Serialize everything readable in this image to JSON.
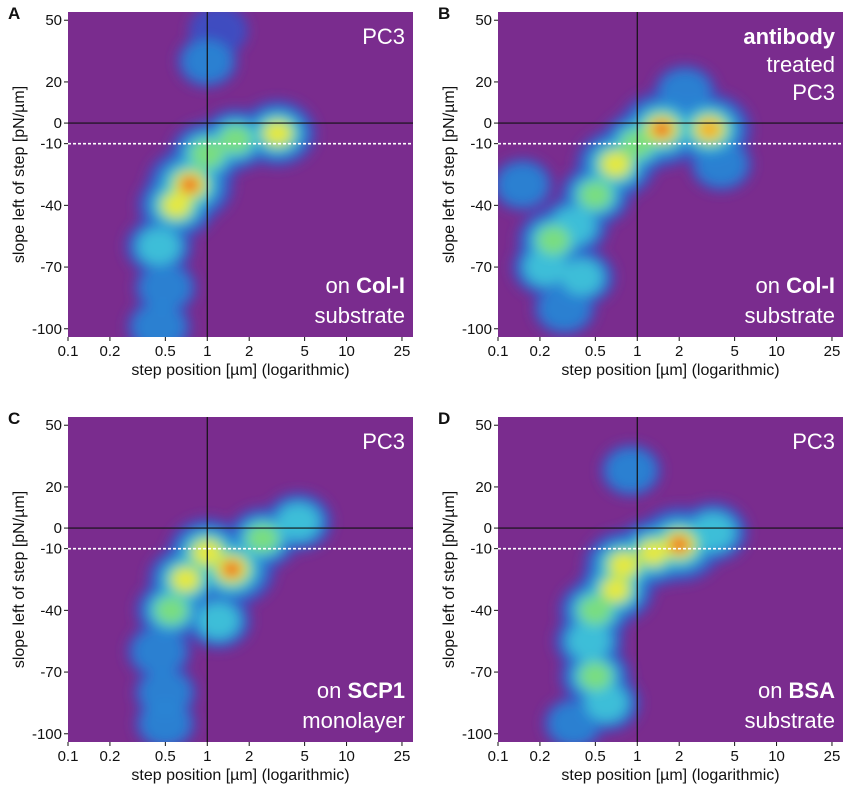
{
  "chart_data": [
    {
      "type": "heatmap",
      "panel_label": "A",
      "xlabel": "step position [µm] (logarithmic)",
      "ylabel": "slope left of step [pN/µm]",
      "x_scale": "log",
      "x_ticks": [
        0.1,
        0.2,
        0.5,
        1,
        2,
        5,
        10,
        25
      ],
      "x_tick_labels": [
        "0.1",
        "0.2",
        "0.5",
        "1",
        "2",
        "5",
        "10",
        "25"
      ],
      "y_ticks": [
        50,
        20,
        0,
        -10,
        -40,
        -70,
        -100
      ],
      "y_tick_labels": [
        "50",
        "20",
        "0",
        "-10",
        "-40",
        "-70",
        "-100"
      ],
      "xlim": [
        0.1,
        30
      ],
      "ylim": [
        -104,
        54
      ],
      "reference_lines": {
        "vertical_x": 1,
        "horizontal_y": 0,
        "dashed_y": -10
      },
      "annotations": [
        {
          "text": "PC3",
          "bold": false,
          "pos": "top-right"
        },
        {
          "prefix": "on ",
          "text": "Col-I",
          "bold": true,
          "pos": "bottom-right"
        },
        {
          "text": "substrate",
          "bold": false,
          "pos": "bottom-right"
        }
      ],
      "hotspots": [
        {
          "x": 0.75,
          "y": -30,
          "intensity": 1.0
        },
        {
          "x": 0.6,
          "y": -40,
          "intensity": 0.75
        },
        {
          "x": 1.0,
          "y": -15,
          "intensity": 0.65
        },
        {
          "x": 1.6,
          "y": -8,
          "intensity": 0.55
        },
        {
          "x": 3.2,
          "y": -5,
          "intensity": 0.7
        },
        {
          "x": 0.45,
          "y": -60,
          "intensity": 0.45
        },
        {
          "x": 0.5,
          "y": -80,
          "intensity": 0.3
        },
        {
          "x": 0.45,
          "y": -99,
          "intensity": 0.35
        },
        {
          "x": 1.0,
          "y": 30,
          "intensity": 0.25
        },
        {
          "x": 1.2,
          "y": 45,
          "intensity": 0.2
        }
      ]
    },
    {
      "type": "heatmap",
      "panel_label": "B",
      "xlabel": "step position [µm] (logarithmic)",
      "ylabel": "slope left of step [pN/µm]",
      "x_scale": "log",
      "x_ticks": [
        0.1,
        0.2,
        0.5,
        1,
        2,
        5,
        10,
        25
      ],
      "x_tick_labels": [
        "0.1",
        "0.2",
        "0.5",
        "1",
        "2",
        "5",
        "10",
        "25"
      ],
      "y_ticks": [
        50,
        20,
        0,
        -10,
        -40,
        -70,
        -100
      ],
      "y_tick_labels": [
        "50",
        "20",
        "0",
        "-10",
        "-40",
        "-70",
        "-100"
      ],
      "xlim": [
        0.1,
        30
      ],
      "ylim": [
        -104,
        54
      ],
      "reference_lines": {
        "vertical_x": 1,
        "horizontal_y": 0,
        "dashed_y": -10
      },
      "annotations": [
        {
          "text": "antibody",
          "bold": true,
          "pos": "top-right"
        },
        {
          "text": "treated",
          "bold": false,
          "pos": "top-right"
        },
        {
          "text": "PC3",
          "bold": false,
          "pos": "top-right"
        },
        {
          "prefix": "on ",
          "text": "Col-I",
          "bold": true,
          "pos": "bottom-right"
        },
        {
          "text": "substrate",
          "bold": false,
          "pos": "bottom-right"
        }
      ],
      "hotspots": [
        {
          "x": 1.5,
          "y": -3,
          "intensity": 1.0
        },
        {
          "x": 3.3,
          "y": -3,
          "intensity": 0.9
        },
        {
          "x": 0.7,
          "y": -20,
          "intensity": 0.8
        },
        {
          "x": 1.0,
          "y": -10,
          "intensity": 0.6
        },
        {
          "x": 0.5,
          "y": -35,
          "intensity": 0.55
        },
        {
          "x": 0.35,
          "y": -50,
          "intensity": 0.5
        },
        {
          "x": 0.25,
          "y": -57,
          "intensity": 0.6
        },
        {
          "x": 0.22,
          "y": -70,
          "intensity": 0.45
        },
        {
          "x": 0.4,
          "y": -75,
          "intensity": 0.4
        },
        {
          "x": 0.3,
          "y": -90,
          "intensity": 0.3
        },
        {
          "x": 2.2,
          "y": 15,
          "intensity": 0.3
        },
        {
          "x": 4.0,
          "y": -20,
          "intensity": 0.3
        },
        {
          "x": 0.15,
          "y": -30,
          "intensity": 0.25
        }
      ]
    },
    {
      "type": "heatmap",
      "panel_label": "C",
      "xlabel": "step position [µm] (logarithmic)",
      "ylabel": "slope left of step [pN/µm]",
      "x_scale": "log",
      "x_ticks": [
        0.1,
        0.2,
        0.5,
        1,
        2,
        5,
        10,
        25
      ],
      "x_tick_labels": [
        "0.1",
        "0.2",
        "0.5",
        "1",
        "2",
        "5",
        "10",
        "25"
      ],
      "y_ticks": [
        50,
        20,
        0,
        -10,
        -40,
        -70,
        -100
      ],
      "y_tick_labels": [
        "50",
        "20",
        "0",
        "-10",
        "-40",
        "-70",
        "-100"
      ],
      "xlim": [
        0.1,
        30
      ],
      "ylim": [
        -104,
        54
      ],
      "reference_lines": {
        "vertical_x": 1,
        "horizontal_y": 0,
        "dashed_y": -10
      },
      "annotations": [
        {
          "text": "PC3",
          "bold": false,
          "pos": "top-right"
        },
        {
          "prefix": "on ",
          "text": "SCP1",
          "bold": true,
          "pos": "bottom-right"
        },
        {
          "text": "monolayer",
          "bold": false,
          "pos": "bottom-right"
        }
      ],
      "hotspots": [
        {
          "x": 1.5,
          "y": -20,
          "intensity": 1.0
        },
        {
          "x": 1.0,
          "y": -12,
          "intensity": 0.8
        },
        {
          "x": 0.7,
          "y": -25,
          "intensity": 0.7
        },
        {
          "x": 0.55,
          "y": -40,
          "intensity": 0.55
        },
        {
          "x": 2.5,
          "y": -5,
          "intensity": 0.55
        },
        {
          "x": 4.5,
          "y": 3,
          "intensity": 0.45
        },
        {
          "x": 0.45,
          "y": -60,
          "intensity": 0.35
        },
        {
          "x": 0.5,
          "y": -80,
          "intensity": 0.3
        },
        {
          "x": 0.5,
          "y": -95,
          "intensity": 0.25
        },
        {
          "x": 1.2,
          "y": -45,
          "intensity": 0.4
        }
      ]
    },
    {
      "type": "heatmap",
      "panel_label": "D",
      "xlabel": "step position [µm] (logarithmic)",
      "ylabel": "slope left of step [pN/µm]",
      "x_scale": "log",
      "x_ticks": [
        0.1,
        0.2,
        0.5,
        1,
        2,
        5,
        10,
        25
      ],
      "x_tick_labels": [
        "0.1",
        "0.2",
        "0.5",
        "1",
        "2",
        "5",
        "10",
        "25"
      ],
      "y_ticks": [
        50,
        20,
        0,
        -10,
        -40,
        -70,
        -100
      ],
      "y_tick_labels": [
        "50",
        "20",
        "0",
        "-10",
        "-40",
        "-70",
        "-100"
      ],
      "xlim": [
        0.1,
        30
      ],
      "ylim": [
        -104,
        54
      ],
      "reference_lines": {
        "vertical_x": 1,
        "horizontal_y": 0,
        "dashed_y": -10
      },
      "annotations": [
        {
          "text": "PC3",
          "bold": false,
          "pos": "top-right"
        },
        {
          "prefix": "on ",
          "text": "BSA",
          "bold": true,
          "pos": "bottom-right"
        },
        {
          "text": "substrate",
          "bold": false,
          "pos": "bottom-right"
        }
      ],
      "hotspots": [
        {
          "x": 2.0,
          "y": -8,
          "intensity": 1.0
        },
        {
          "x": 1.3,
          "y": -12,
          "intensity": 0.75
        },
        {
          "x": 0.8,
          "y": -18,
          "intensity": 0.8
        },
        {
          "x": 0.7,
          "y": -30,
          "intensity": 0.7
        },
        {
          "x": 0.5,
          "y": -40,
          "intensity": 0.6
        },
        {
          "x": 0.45,
          "y": -55,
          "intensity": 0.5
        },
        {
          "x": 0.5,
          "y": -72,
          "intensity": 0.55
        },
        {
          "x": 0.6,
          "y": -85,
          "intensity": 0.45
        },
        {
          "x": 3.5,
          "y": -2,
          "intensity": 0.5
        },
        {
          "x": 0.9,
          "y": 28,
          "intensity": 0.25
        },
        {
          "x": 0.35,
          "y": -95,
          "intensity": 0.25
        }
      ]
    }
  ],
  "colors": {
    "background": "#7a2c8e",
    "colormap": [
      "#7a2c8e",
      "#3a4fc4",
      "#2a86d4",
      "#3ec3d8",
      "#7fe07a",
      "#f0e83a",
      "#f5a02a",
      "#e8281c"
    ],
    "annotation_text": "#ffffff",
    "axis_lines": "#111111",
    "dashed_line": "#ffffff"
  }
}
